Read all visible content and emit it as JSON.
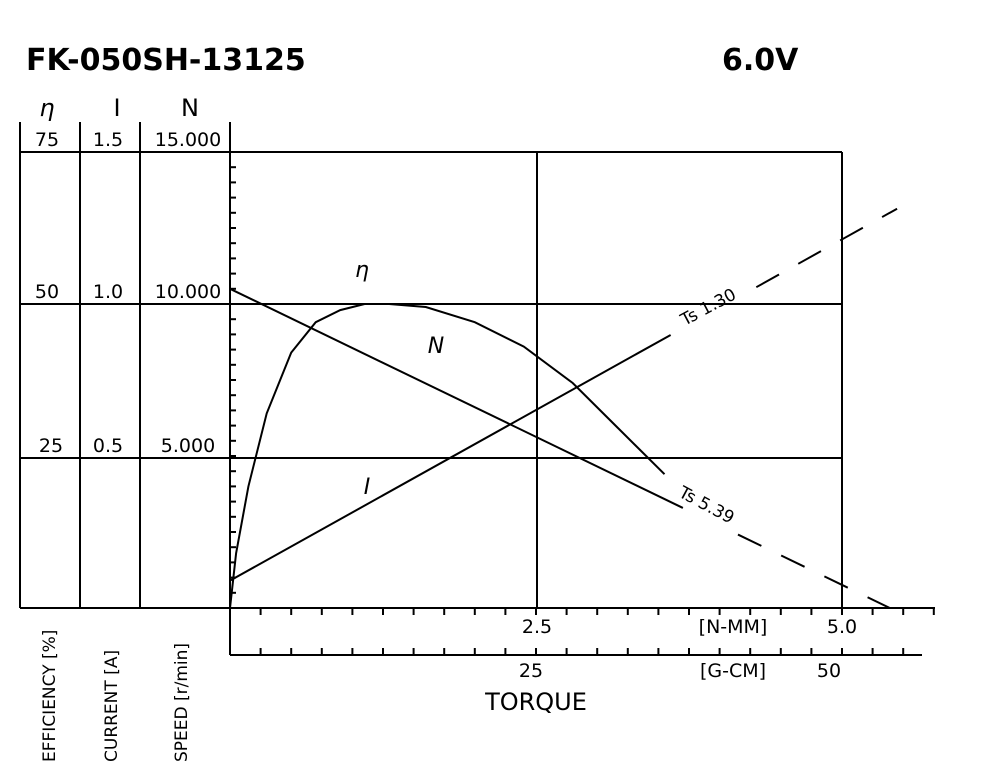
{
  "chart_data": {
    "type": "line",
    "title": "FK-050SH-13125",
    "voltage": "6.0V",
    "y_axes": [
      {
        "symbol": "η",
        "label": "EFFICIENCY [%]",
        "range": [
          0,
          75
        ],
        "ticks": [
          "25",
          "50",
          "75"
        ]
      },
      {
        "symbol": "I",
        "label": "CURRENT [A]",
        "range": [
          0,
          1.5
        ],
        "ticks": [
          "0.5",
          "1.0",
          "1.5"
        ]
      },
      {
        "symbol": "N",
        "label": "SPEED [r/min]",
        "range": [
          0,
          15000
        ],
        "ticks": [
          "5.000",
          "10.000",
          "15.000"
        ]
      }
    ],
    "x_axes": [
      {
        "unit": "[N-MM]",
        "range": [
          0,
          5.0
        ],
        "ticks": [
          "2.5",
          "5.0"
        ]
      },
      {
        "unit": "[G-CM]",
        "range": [
          0,
          50
        ],
        "ticks": [
          "25",
          "50"
        ]
      }
    ],
    "xlabel": "TORQUE",
    "grid": true,
    "series": [
      {
        "name": "η",
        "axis": "efficiency",
        "x": [
          0,
          0.05,
          0.15,
          0.3,
          0.5,
          0.7,
          0.9,
          1.1,
          1.3,
          1.6,
          2.0,
          2.4,
          2.8,
          3.1,
          3.55
        ],
        "y": [
          0,
          9,
          20,
          32,
          42,
          47,
          49,
          50,
          50,
          49.5,
          47,
          43,
          37,
          31,
          22
        ]
      },
      {
        "name": "N",
        "axis": "speed",
        "x": [
          0,
          5.39
        ],
        "y": [
          10500,
          0
        ],
        "annotation": "Ts 5.39"
      },
      {
        "name": "I",
        "axis": "current",
        "x": [
          0,
          5.39
        ],
        "y": [
          0.09,
          1.3
        ],
        "annotation": "Ts 1.30"
      }
    ]
  }
}
